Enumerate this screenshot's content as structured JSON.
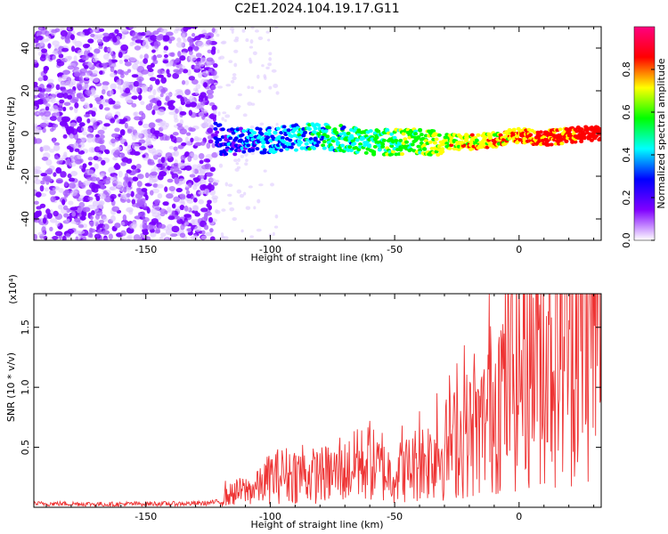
{
  "title": "C2E1.2024.104.19.17.G11",
  "chart_data": [
    {
      "type": "heatmap",
      "title": "C2E1.2024.104.19.17.G11",
      "xlabel": "Height of straight line (km)",
      "ylabel": "Frequency (Hz)",
      "xlim": [
        -195,
        33
      ],
      "ylim": [
        -50,
        50
      ],
      "xticks": [
        -150,
        -100,
        -50,
        0
      ],
      "yticks": [
        -40,
        -20,
        0,
        20,
        40
      ],
      "grid": false,
      "description_of_field": "noise scatter for height < -122 km; narrow band near 0 Hz from -122 km to 33 km, brightening with height",
      "band_center_hz": [
        {
          "x": -120,
          "y": -4
        },
        {
          "x": -100,
          "y": -3
        },
        {
          "x": -80,
          "y": -1
        },
        {
          "x": -60,
          "y": -4
        },
        {
          "x": -40,
          "y": -4
        },
        {
          "x": -20,
          "y": -4
        },
        {
          "x": -10,
          "y": -3
        },
        {
          "x": 0,
          "y": -1
        },
        {
          "x": 10,
          "y": -2
        },
        {
          "x": 30,
          "y": 0
        }
      ],
      "colorbar": {
        "label": "Normalized spectral amplitude",
        "range": [
          0,
          1
        ],
        "ticks": [
          "0.0",
          "0.2",
          "0.4",
          "0.6",
          "0.8"
        ],
        "colors": [
          "#ffffff",
          "#8000ff",
          "#0000ff",
          "#00ffff",
          "#00ff00",
          "#ffff00",
          "#ff0000",
          "#ff0080"
        ]
      }
    },
    {
      "type": "line",
      "xlabel": "Height of straight line (km)",
      "ylabel": "SNR (10 * v/v)",
      "y_multiplier": "(x10⁴)",
      "xlim": [
        -195,
        33
      ],
      "ylim": [
        0,
        17800
      ],
      "xticks": [
        -150,
        -100,
        -50,
        0
      ],
      "yticks": [
        {
          "value": 5000,
          "label": "0.5"
        },
        {
          "value": 10000,
          "label": "1.0"
        },
        {
          "value": 15000,
          "label": "1.5"
        }
      ],
      "grid": false,
      "series": [
        {
          "color": "#ee3333",
          "points": [
            [
              -195,
              300
            ],
            [
              -180,
              300
            ],
            [
              -165,
              250
            ],
            [
              -150,
              300
            ],
            [
              -135,
              300
            ],
            [
              -125,
              350
            ],
            [
              -120,
              500
            ],
            [
              -115,
              1200
            ],
            [
              -110,
              1400
            ],
            [
              -105,
              1600
            ],
            [
              -100,
              2500
            ],
            [
              -95,
              2700
            ],
            [
              -90,
              2800
            ],
            [
              -85,
              2600
            ],
            [
              -80,
              2700
            ],
            [
              -75,
              2800
            ],
            [
              -70,
              3000
            ],
            [
              -65,
              3500
            ],
            [
              -60,
              3700
            ],
            [
              -55,
              3000
            ],
            [
              -50,
              2800
            ],
            [
              -45,
              3200
            ],
            [
              -40,
              3800
            ],
            [
              -35,
              4200
            ],
            [
              -30,
              4800
            ],
            [
              -25,
              5500
            ],
            [
              -20,
              6200
            ],
            [
              -15,
              6500
            ],
            [
              -12,
              8000
            ],
            [
              -10,
              9000
            ],
            [
              -5,
              10500
            ],
            [
              0,
              11500
            ],
            [
              5,
              12500
            ],
            [
              10,
              13200
            ],
            [
              15,
              13800
            ],
            [
              20,
              14500
            ],
            [
              25,
              15200
            ],
            [
              30,
              15700
            ],
            [
              33,
              15300
            ]
          ],
          "spikes": [
            [
              -118,
              2200
            ],
            [
              -105,
              3000
            ],
            [
              -95,
              4200
            ],
            [
              -87,
              5200
            ],
            [
              -80,
              4500
            ],
            [
              -72,
              5800
            ],
            [
              -65,
              6500
            ],
            [
              -60,
              7200
            ],
            [
              -55,
              6200
            ],
            [
              -47,
              6800
            ],
            [
              -40,
              8000
            ],
            [
              -33,
              9500
            ],
            [
              -28,
              11000
            ],
            [
              -25,
              12000
            ],
            [
              -22,
              13500
            ],
            [
              -18,
              12800
            ],
            [
              -14,
              11500
            ],
            [
              -12,
              17800
            ],
            [
              -8,
              14200
            ],
            [
              -4,
              13000
            ],
            [
              2,
              14000
            ],
            [
              8,
              15000
            ],
            [
              12,
              15200
            ],
            [
              20,
              15600
            ],
            [
              28,
              16200
            ]
          ]
        }
      ]
    }
  ]
}
